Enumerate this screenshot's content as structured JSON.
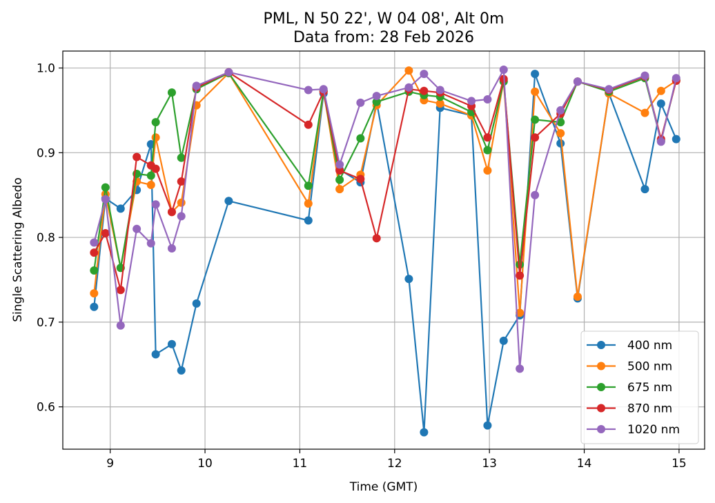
{
  "chart_data": {
    "type": "line",
    "title": "PML, N 50 22', W 04 08', Alt 0m",
    "subtitle": "Data from: 28 Feb 2026",
    "xlabel": "Time (GMT)",
    "ylabel": "Single Scattering Albedo",
    "xlim": [
      8.5,
      15.27
    ],
    "ylim": [
      0.55,
      1.02
    ],
    "xticks": [
      9,
      10,
      11,
      12,
      13,
      14,
      15
    ],
    "yticks": [
      0.6,
      0.7,
      0.8,
      0.9,
      1.0
    ],
    "xtick_labels": [
      "9",
      "10",
      "11",
      "12",
      "13",
      "14",
      "15"
    ],
    "ytick_labels": [
      "0.6",
      "0.7",
      "0.8",
      "0.9",
      "1.0"
    ],
    "grid": true,
    "legend_position": "lower-right",
    "x": [
      8.83,
      8.95,
      9.11,
      9.28,
      9.43,
      9.48,
      9.65,
      9.75,
      9.91,
      10.25,
      11.09,
      11.25,
      11.42,
      11.64,
      11.81,
      12.15,
      12.31,
      12.48,
      12.81,
      12.98,
      13.15,
      13.32,
      13.48,
      13.75,
      13.93,
      14.26,
      14.64,
      14.81,
      14.97
    ],
    "series": [
      {
        "name": "400 nm",
        "color": "#1f77b4",
        "values": [
          0.718,
          0.846,
          0.834,
          0.856,
          0.91,
          0.662,
          0.674,
          0.643,
          0.722,
          0.843,
          0.82,
          0.97,
          0.88,
          0.865,
          0.96,
          0.751,
          0.57,
          0.953,
          0.944,
          0.578,
          0.678,
          0.708,
          0.993,
          0.911,
          0.728,
          0.97,
          0.857,
          0.958,
          0.916
        ]
      },
      {
        "name": "500 nm",
        "color": "#ff7f0e",
        "values": [
          0.734,
          0.851,
          0.764,
          0.866,
          0.862,
          0.918,
          0.83,
          0.841,
          0.956,
          0.994,
          0.84,
          0.973,
          0.857,
          0.874,
          0.956,
          0.997,
          0.962,
          0.958,
          0.944,
          0.879,
          0.985,
          0.711,
          0.972,
          0.923,
          0.73,
          0.97,
          0.947,
          0.973,
          0.985
        ]
      },
      {
        "name": "675 nm",
        "color": "#2ca02c",
        "values": [
          0.761,
          0.859,
          0.764,
          0.875,
          0.873,
          0.936,
          0.971,
          0.894,
          0.975,
          0.994,
          0.861,
          0.973,
          0.868,
          0.917,
          0.96,
          0.972,
          0.968,
          0.966,
          0.948,
          0.903,
          0.984,
          0.768,
          0.939,
          0.936,
          0.984,
          0.972,
          0.988,
          0.914,
          0.986
        ]
      },
      {
        "name": "870 nm",
        "color": "#d62728",
        "values": [
          0.782,
          0.805,
          0.738,
          0.895,
          0.885,
          0.881,
          0.83,
          0.866,
          0.977,
          0.995,
          0.933,
          0.972,
          0.879,
          0.869,
          0.799,
          0.975,
          0.973,
          0.971,
          0.955,
          0.918,
          0.987,
          0.755,
          0.918,
          0.946,
          0.984,
          0.974,
          0.99,
          0.916,
          0.985
        ]
      },
      {
        "name": "1020 nm",
        "color": "#9467bd",
        "values": [
          0.794,
          0.845,
          0.696,
          0.81,
          0.793,
          0.839,
          0.787,
          0.825,
          0.979,
          0.995,
          0.974,
          0.975,
          0.886,
          0.959,
          0.967,
          0.977,
          0.993,
          0.974,
          0.961,
          0.963,
          0.998,
          0.645,
          0.85,
          0.95,
          0.984,
          0.975,
          0.991,
          0.913,
          0.988
        ]
      }
    ]
  }
}
